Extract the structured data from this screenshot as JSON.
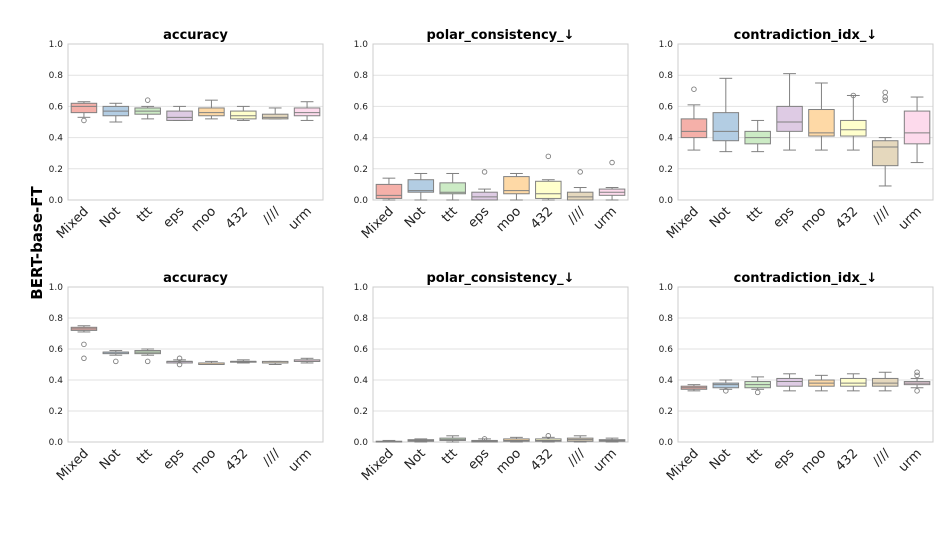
{
  "figure": {
    "row_label": "BERT-base-FT"
  },
  "chart_data": [
    {
      "type": "box",
      "title": "accuracy",
      "ylim": [
        0,
        1
      ],
      "yticks": [
        "0.0",
        "0.2",
        "0.4",
        "0.6",
        "0.8",
        "1.0"
      ],
      "grid": true,
      "categories": [
        "Mixed",
        "Not",
        "ttt",
        "eps",
        "moo",
        "432",
        "////",
        "urm"
      ],
      "boxes": [
        {
          "whislo": 0.53,
          "q1": 0.56,
          "med": 0.6,
          "q3": 0.62,
          "whishi": 0.63,
          "fliers": [
            0.51
          ]
        },
        {
          "whislo": 0.5,
          "q1": 0.54,
          "med": 0.57,
          "q3": 0.6,
          "whishi": 0.62,
          "fliers": []
        },
        {
          "whislo": 0.52,
          "q1": 0.55,
          "med": 0.57,
          "q3": 0.59,
          "whishi": 0.6,
          "fliers": [
            0.64
          ]
        },
        {
          "whislo": 0.51,
          "q1": 0.51,
          "med": 0.53,
          "q3": 0.57,
          "whishi": 0.6,
          "fliers": []
        },
        {
          "whislo": 0.52,
          "q1": 0.54,
          "med": 0.56,
          "q3": 0.59,
          "whishi": 0.64,
          "fliers": []
        },
        {
          "whislo": 0.51,
          "q1": 0.52,
          "med": 0.54,
          "q3": 0.57,
          "whishi": 0.6,
          "fliers": []
        },
        {
          "whislo": 0.52,
          "q1": 0.52,
          "med": 0.53,
          "q3": 0.55,
          "whishi": 0.59,
          "fliers": []
        },
        {
          "whislo": 0.51,
          "q1": 0.54,
          "med": 0.56,
          "q3": 0.59,
          "whishi": 0.63,
          "fliers": []
        }
      ]
    },
    {
      "type": "box",
      "title": "polar_consistency_↓",
      "ylim": [
        0,
        1
      ],
      "yticks": [
        "0.0",
        "0.2",
        "0.4",
        "0.6",
        "0.8",
        "1.0"
      ],
      "grid": true,
      "categories": [
        "Mixed",
        "Not",
        "ttt",
        "eps",
        "moo",
        "432",
        "////",
        "urm"
      ],
      "boxes": [
        {
          "whislo": 0.0,
          "q1": 0.01,
          "med": 0.03,
          "q3": 0.1,
          "whishi": 0.14,
          "fliers": []
        },
        {
          "whislo": 0.0,
          "q1": 0.05,
          "med": 0.06,
          "q3": 0.13,
          "whishi": 0.17,
          "fliers": []
        },
        {
          "whislo": 0.0,
          "q1": 0.04,
          "med": 0.05,
          "q3": 0.11,
          "whishi": 0.17,
          "fliers": []
        },
        {
          "whislo": 0.0,
          "q1": 0.0,
          "med": 0.02,
          "q3": 0.05,
          "whishi": 0.07,
          "fliers": [
            0.18
          ]
        },
        {
          "whislo": 0.0,
          "q1": 0.04,
          "med": 0.06,
          "q3": 0.15,
          "whishi": 0.17,
          "fliers": []
        },
        {
          "whislo": 0.0,
          "q1": 0.01,
          "med": 0.04,
          "q3": 0.12,
          "whishi": 0.13,
          "fliers": [
            0.28
          ]
        },
        {
          "whislo": 0.0,
          "q1": 0.0,
          "med": 0.02,
          "q3": 0.05,
          "whishi": 0.08,
          "fliers": [
            0.18
          ]
        },
        {
          "whislo": 0.0,
          "q1": 0.03,
          "med": 0.05,
          "q3": 0.07,
          "whishi": 0.08,
          "fliers": [
            0.24
          ]
        }
      ]
    },
    {
      "type": "box",
      "title": "contradiction_idx_↓",
      "ylim": [
        0,
        1
      ],
      "yticks": [
        "0.0",
        "0.2",
        "0.4",
        "0.6",
        "0.8",
        "1.0"
      ],
      "grid": true,
      "categories": [
        "Mixed",
        "Not",
        "ttt",
        "eps",
        "moo",
        "432",
        "////",
        "urm"
      ],
      "boxes": [
        {
          "whislo": 0.32,
          "q1": 0.4,
          "med": 0.44,
          "q3": 0.52,
          "whishi": 0.61,
          "fliers": [
            0.71
          ]
        },
        {
          "whislo": 0.31,
          "q1": 0.38,
          "med": 0.44,
          "q3": 0.56,
          "whishi": 0.78,
          "fliers": []
        },
        {
          "whislo": 0.31,
          "q1": 0.36,
          "med": 0.4,
          "q3": 0.44,
          "whishi": 0.51,
          "fliers": []
        },
        {
          "whislo": 0.32,
          "q1": 0.44,
          "med": 0.5,
          "q3": 0.6,
          "whishi": 0.81,
          "fliers": []
        },
        {
          "whislo": 0.32,
          "q1": 0.41,
          "med": 0.43,
          "q3": 0.58,
          "whishi": 0.75,
          "fliers": []
        },
        {
          "whislo": 0.32,
          "q1": 0.41,
          "med": 0.45,
          "q3": 0.51,
          "whishi": 0.67,
          "fliers": [
            0.67
          ]
        },
        {
          "whislo": 0.09,
          "q1": 0.22,
          "med": 0.34,
          "q3": 0.38,
          "whishi": 0.4,
          "fliers": [
            0.64,
            0.66,
            0.69
          ]
        },
        {
          "whislo": 0.24,
          "q1": 0.36,
          "med": 0.43,
          "q3": 0.57,
          "whishi": 0.66,
          "fliers": []
        }
      ]
    },
    {
      "type": "box",
      "title": "accuracy",
      "ylim": [
        0,
        1
      ],
      "yticks": [
        "0.0",
        "0.2",
        "0.4",
        "0.6",
        "0.8",
        "1.0"
      ],
      "grid": true,
      "categories": [
        "Mixed",
        "Not",
        "ttt",
        "eps",
        "moo",
        "432",
        "////",
        "urm"
      ],
      "boxes": [
        {
          "whislo": 0.71,
          "q1": 0.72,
          "med": 0.73,
          "q3": 0.74,
          "whishi": 0.75,
          "fliers": [
            0.63,
            0.54
          ]
        },
        {
          "whislo": 0.56,
          "q1": 0.57,
          "med": 0.58,
          "q3": 0.58,
          "whishi": 0.59,
          "fliers": [
            0.52
          ]
        },
        {
          "whislo": 0.56,
          "q1": 0.57,
          "med": 0.58,
          "q3": 0.59,
          "whishi": 0.6,
          "fliers": [
            0.52
          ]
        },
        {
          "whislo": 0.51,
          "q1": 0.51,
          "med": 0.52,
          "q3": 0.52,
          "whishi": 0.53,
          "fliers": [
            0.5,
            0.54
          ]
        },
        {
          "whislo": 0.5,
          "q1": 0.5,
          "med": 0.51,
          "q3": 0.51,
          "whishi": 0.52,
          "fliers": []
        },
        {
          "whislo": 0.51,
          "q1": 0.52,
          "med": 0.52,
          "q3": 0.52,
          "whishi": 0.53,
          "fliers": []
        },
        {
          "whislo": 0.5,
          "q1": 0.51,
          "med": 0.51,
          "q3": 0.52,
          "whishi": 0.52,
          "fliers": []
        },
        {
          "whislo": 0.51,
          "q1": 0.52,
          "med": 0.52,
          "q3": 0.53,
          "whishi": 0.54,
          "fliers": []
        }
      ]
    },
    {
      "type": "box",
      "title": "polar_consistency_↓",
      "ylim": [
        0,
        1
      ],
      "yticks": [
        "0.0",
        "0.2",
        "0.4",
        "0.6",
        "0.8",
        "1.0"
      ],
      "grid": true,
      "categories": [
        "Mixed",
        "Not",
        "ttt",
        "eps",
        "moo",
        "432",
        "////",
        "urm"
      ],
      "boxes": [
        {
          "whislo": 0.0,
          "q1": 0.0,
          "med": 0.0,
          "q3": 0.005,
          "whishi": 0.01,
          "fliers": []
        },
        {
          "whislo": 0.0,
          "q1": 0.005,
          "med": 0.01,
          "q3": 0.015,
          "whishi": 0.02,
          "fliers": []
        },
        {
          "whislo": 0.0,
          "q1": 0.01,
          "med": 0.015,
          "q3": 0.025,
          "whishi": 0.04,
          "fliers": []
        },
        {
          "whislo": 0.0,
          "q1": 0.0,
          "med": 0.005,
          "q3": 0.01,
          "whishi": 0.02,
          "fliers": [
            0.02
          ]
        },
        {
          "whislo": 0.0,
          "q1": 0.005,
          "med": 0.01,
          "q3": 0.02,
          "whishi": 0.03,
          "fliers": []
        },
        {
          "whislo": 0.0,
          "q1": 0.005,
          "med": 0.01,
          "q3": 0.02,
          "whishi": 0.03,
          "fliers": [
            0.04
          ]
        },
        {
          "whislo": 0.0,
          "q1": 0.005,
          "med": 0.015,
          "q3": 0.025,
          "whishi": 0.04,
          "fliers": []
        },
        {
          "whislo": 0.0,
          "q1": 0.005,
          "med": 0.01,
          "q3": 0.015,
          "whishi": 0.025,
          "fliers": []
        }
      ]
    },
    {
      "type": "box",
      "title": "contradiction_idx_↓",
      "ylim": [
        0,
        1
      ],
      "yticks": [
        "0.0",
        "0.2",
        "0.4",
        "0.6",
        "0.8",
        "1.0"
      ],
      "grid": true,
      "categories": [
        "Mixed",
        "Not",
        "ttt",
        "eps",
        "moo",
        "432",
        "////",
        "urm"
      ],
      "boxes": [
        {
          "whislo": 0.33,
          "q1": 0.34,
          "med": 0.35,
          "q3": 0.36,
          "whishi": 0.37,
          "fliers": []
        },
        {
          "whislo": 0.34,
          "q1": 0.35,
          "med": 0.37,
          "q3": 0.38,
          "whishi": 0.4,
          "fliers": [
            0.33
          ]
        },
        {
          "whislo": 0.34,
          "q1": 0.35,
          "med": 0.37,
          "q3": 0.39,
          "whishi": 0.42,
          "fliers": [
            0.32
          ]
        },
        {
          "whislo": 0.33,
          "q1": 0.36,
          "med": 0.39,
          "q3": 0.41,
          "whishi": 0.44,
          "fliers": []
        },
        {
          "whislo": 0.33,
          "q1": 0.36,
          "med": 0.38,
          "q3": 0.4,
          "whishi": 0.43,
          "fliers": []
        },
        {
          "whislo": 0.33,
          "q1": 0.36,
          "med": 0.38,
          "q3": 0.41,
          "whishi": 0.44,
          "fliers": []
        },
        {
          "whislo": 0.33,
          "q1": 0.36,
          "med": 0.38,
          "q3": 0.41,
          "whishi": 0.45,
          "fliers": []
        },
        {
          "whislo": 0.35,
          "q1": 0.37,
          "med": 0.38,
          "q3": 0.39,
          "whishi": 0.41,
          "fliers": [
            0.33,
            0.43,
            0.45
          ]
        }
      ]
    }
  ],
  "colors": {
    "box_fills": [
      "#f5b0a9",
      "#b3cde3",
      "#ccebc5",
      "#decbe4",
      "#fed9a6",
      "#ffffcc",
      "#e5d8bd",
      "#fddaec"
    ],
    "edge": "#808080",
    "grid": "#e2e2e2",
    "frame": "#cccccc"
  }
}
